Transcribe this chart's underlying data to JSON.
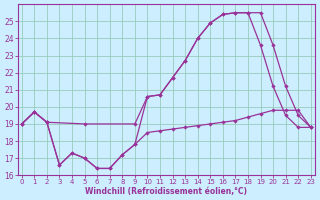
{
  "xlabel": "Windchill (Refroidissement éolien,°C)",
  "background_color": "#cceeff",
  "grid_color": "#99ccbb",
  "line_color": "#993399",
  "xlim": [
    -0.3,
    23.3
  ],
  "ylim": [
    16,
    26
  ],
  "yticks": [
    16,
    17,
    18,
    19,
    20,
    21,
    22,
    23,
    24,
    25
  ],
  "xticks": [
    0,
    1,
    2,
    3,
    4,
    5,
    6,
    7,
    8,
    9,
    10,
    11,
    12,
    13,
    14,
    15,
    16,
    17,
    18,
    19,
    20,
    21,
    22,
    23
  ],
  "line1_x": [
    0,
    1,
    2,
    3,
    4,
    5,
    6,
    7,
    8,
    9,
    10,
    11,
    12,
    13,
    14,
    15,
    16,
    17,
    18,
    19,
    20,
    21,
    22,
    23
  ],
  "line1_y": [
    19.0,
    19.7,
    19.1,
    16.6,
    17.3,
    17.0,
    16.4,
    16.4,
    17.2,
    17.8,
    18.5,
    18.6,
    18.7,
    18.8,
    18.9,
    19.0,
    19.1,
    19.2,
    19.4,
    19.6,
    19.8,
    19.8,
    19.8,
    18.8
  ],
  "line2_x": [
    0,
    1,
    2,
    5,
    9,
    10,
    11,
    12,
    13,
    14,
    15,
    16,
    17,
    18,
    19,
    20,
    21,
    22,
    23
  ],
  "line2_y": [
    19.0,
    19.7,
    19.1,
    19.0,
    19.0,
    20.6,
    20.7,
    21.7,
    22.7,
    24.0,
    24.9,
    25.4,
    25.5,
    25.5,
    25.5,
    23.6,
    21.2,
    19.5,
    18.8
  ],
  "line3_x": [
    0,
    1,
    2,
    3,
    4,
    5,
    6,
    7,
    8,
    9,
    10,
    11,
    12,
    13,
    14,
    15,
    16,
    17,
    18,
    19,
    20,
    21,
    22,
    23
  ],
  "line3_y": [
    19.0,
    19.7,
    19.1,
    16.6,
    17.3,
    17.0,
    16.4,
    16.4,
    17.2,
    17.8,
    20.6,
    20.7,
    21.7,
    22.7,
    24.0,
    24.9,
    25.4,
    25.5,
    25.5,
    23.6,
    21.2,
    19.5,
    18.8,
    18.8
  ]
}
